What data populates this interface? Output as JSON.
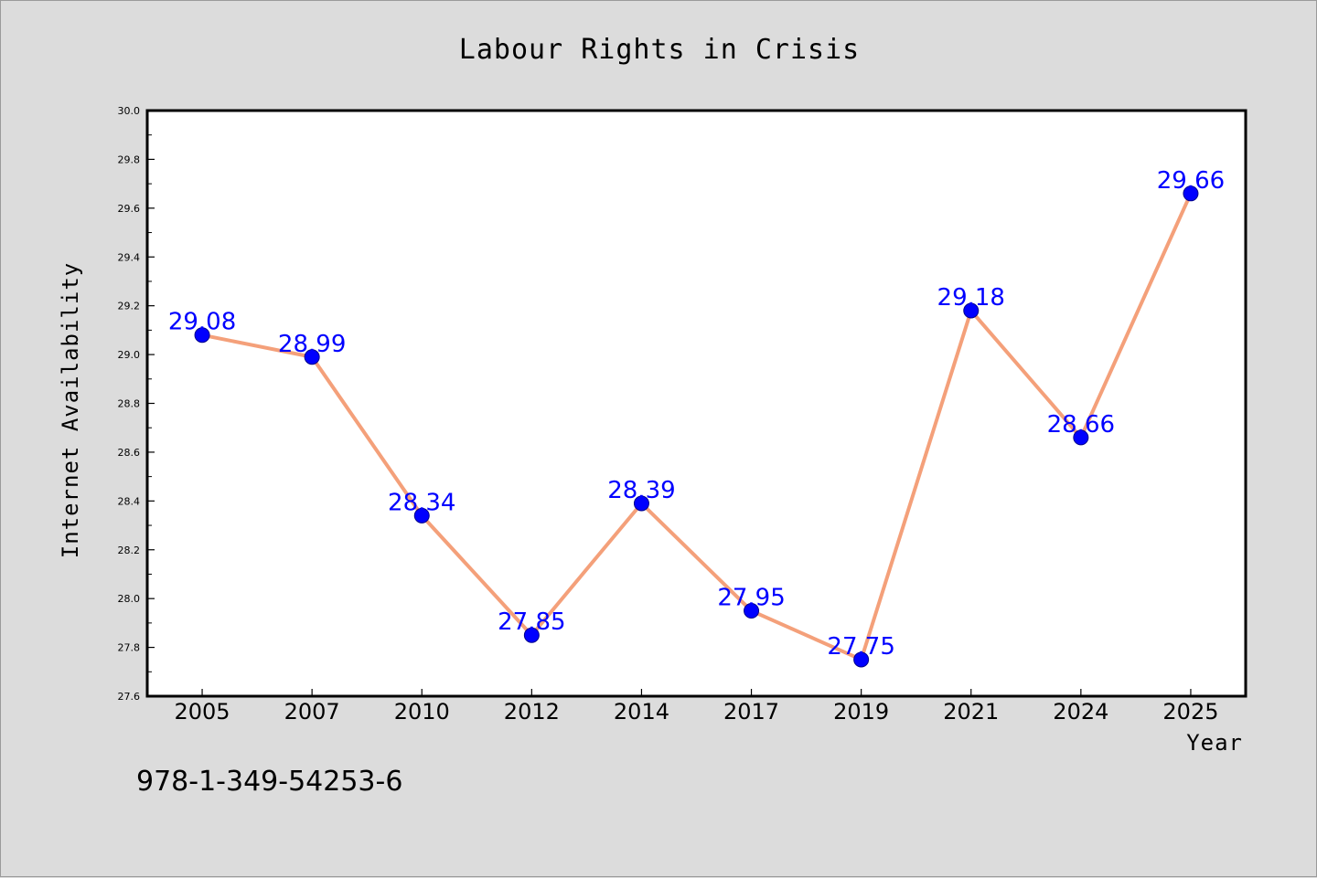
{
  "chart_data": {
    "type": "line",
    "title": "Labour Rights in Crisis",
    "xlabel": "Year",
    "ylabel": "Internet Availability",
    "categories": [
      "2005",
      "2007",
      "2010",
      "2012",
      "2014",
      "2017",
      "2019",
      "2021",
      "2024",
      "2025"
    ],
    "values": [
      29.08,
      28.99,
      28.34,
      27.85,
      28.39,
      27.95,
      27.75,
      29.18,
      28.66,
      29.66
    ],
    "data_labels": [
      "29.08",
      "28.99",
      "28.34",
      "27.85",
      "28.39",
      "27.95",
      "27.75",
      "29.18",
      "28.66",
      "29.66"
    ],
    "ylim": [
      27.6,
      30.0
    ],
    "yticks": [
      "27.6",
      "27.8",
      "28.0",
      "28.2",
      "28.4",
      "28.6",
      "28.8",
      "29.0",
      "29.2",
      "29.4",
      "29.6",
      "29.8",
      "30.0"
    ],
    "grid": false,
    "annotation": "978-1-349-54253-6",
    "colors": {
      "line": "#f4a07a",
      "marker": "#0000ff",
      "label": "#0000ff",
      "background": "#dcdcdc",
      "plot_background": "#ffffff"
    }
  }
}
